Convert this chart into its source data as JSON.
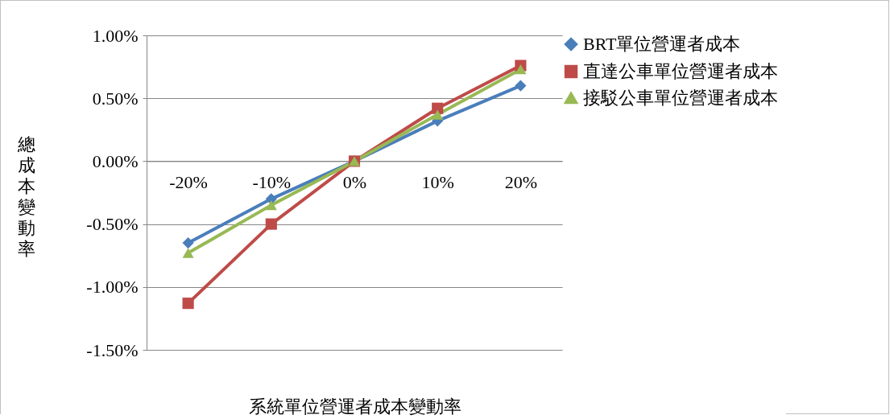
{
  "chart_data": {
    "type": "line",
    "xlabel": "系統單位營運者成本變動率",
    "ylabel": "總成本變動率",
    "categories": [
      "-20%",
      "-10%",
      "0%",
      "10%",
      "20%"
    ],
    "series": [
      {
        "name": "BRT單位營運者成本",
        "color": "#4a7ebb",
        "marker": "diamond",
        "values": [
          -0.65,
          -0.3,
          0,
          0.32,
          0.6
        ]
      },
      {
        "name": "直達公車單位營運者成本",
        "color": "#be4b48",
        "marker": "square",
        "values": [
          -1.13,
          -0.5,
          0,
          0.42,
          0.76
        ]
      },
      {
        "name": "接駁公車單位營運者成本",
        "color": "#98b954",
        "marker": "triangle",
        "values": [
          -0.73,
          -0.35,
          0,
          0.37,
          0.73
        ]
      }
    ],
    "ylim": [
      -1.5,
      1.0
    ],
    "yticks": [
      {
        "value": -1.5,
        "label": "-1.50%"
      },
      {
        "value": -1.0,
        "label": "-1.00%"
      },
      {
        "value": -0.5,
        "label": "-0.50%"
      },
      {
        "value": 0,
        "label": "0.00%"
      },
      {
        "value": 0.5,
        "label": "0.50%"
      },
      {
        "value": 1.0,
        "label": "1.00%"
      }
    ],
    "grid": "y",
    "legend": "right",
    "line_style": "solid"
  }
}
